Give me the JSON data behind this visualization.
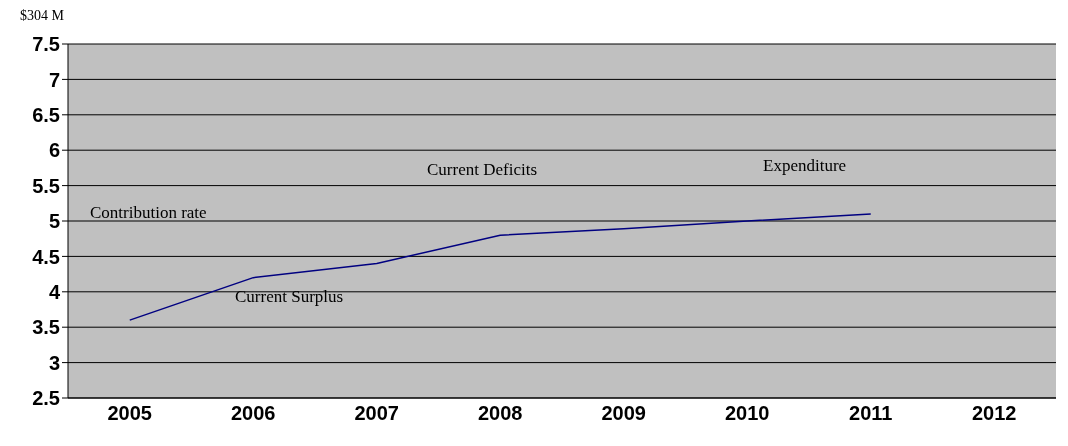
{
  "chart_data": {
    "type": "line",
    "categories": [
      "2005",
      "2006",
      "2007",
      "2008",
      "2009",
      "2010",
      "2011",
      "2012"
    ],
    "series": [
      {
        "color": "#000080",
        "values": [
          3.6,
          4.2,
          4.4,
          4.8,
          4.89,
          5.0,
          5.1,
          null
        ]
      }
    ],
    "ylim": [
      2.5,
      7.5
    ],
    "yticks": [
      2.5,
      3,
      3.5,
      4,
      4.5,
      5,
      5.5,
      6,
      6.5,
      7,
      7.5
    ],
    "grid": "y",
    "marker": "none",
    "line_style": "solid",
    "annotations": [
      "$304 M",
      "Contribution rate",
      "Current Deficits",
      "Expenditure",
      "Current Surplus"
    ]
  }
}
